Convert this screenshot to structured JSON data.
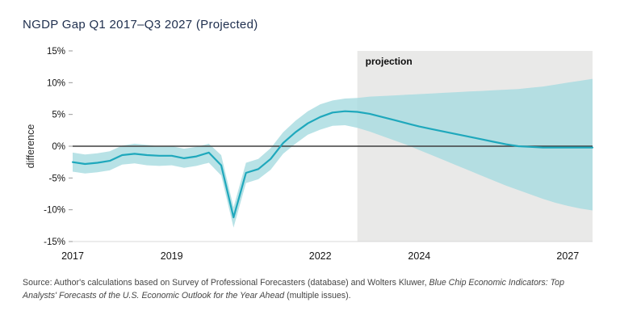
{
  "header": {
    "title": "NGDP Gap Q1 2017–Q3 2027 (Projected)"
  },
  "colors": {
    "line": "#1fa8bc",
    "band": "#a6dbe0",
    "projection_bg": "#e9e9e8",
    "zero_line": "#3f3f3f",
    "axis_line": "#d8d8d8",
    "tick_mark": "#9a9a9a"
  },
  "chart_data": {
    "type": "line",
    "title": "NGDP Gap Q1 2017–Q3 2027 (Projected)",
    "xlabel": "",
    "ylabel": "difference",
    "ylim": [
      -15,
      15
    ],
    "yticks": [
      15,
      10,
      5,
      0,
      -5,
      -10,
      -15
    ],
    "ytick_labels": [
      "15%",
      "10%",
      "5%",
      "0%",
      "-5%",
      "-10%",
      "-15%"
    ],
    "xticks": [
      2017,
      2019,
      2022,
      2024,
      2027
    ],
    "x_range": [
      2017.0,
      2027.5
    ],
    "projection_start": 2022.75,
    "projection_label": "projection",
    "grid": false,
    "legend": "none",
    "x": [
      2017.0,
      2017.25,
      2017.5,
      2017.75,
      2018.0,
      2018.25,
      2018.5,
      2018.75,
      2019.0,
      2019.25,
      2019.5,
      2019.75,
      2020.0,
      2020.25,
      2020.5,
      2020.75,
      2021.0,
      2021.25,
      2021.5,
      2021.75,
      2022.0,
      2022.25,
      2022.5,
      2022.75,
      2023.0,
      2023.25,
      2023.5,
      2023.75,
      2024.0,
      2024.25,
      2024.5,
      2024.75,
      2025.0,
      2025.25,
      2025.5,
      2025.75,
      2026.0,
      2026.25,
      2026.5,
      2026.75,
      2027.0,
      2027.25,
      2027.5
    ],
    "series": [
      {
        "name": "NGDP gap",
        "values": [
          -2.5,
          -2.8,
          -2.6,
          -2.3,
          -1.4,
          -1.2,
          -1.4,
          -1.5,
          -1.5,
          -1.9,
          -1.6,
          -1.0,
          -3.0,
          -11.2,
          -4.2,
          -3.6,
          -2.0,
          0.5,
          2.2,
          3.6,
          4.6,
          5.3,
          5.5,
          5.4,
          5.1,
          4.6,
          4.1,
          3.6,
          3.1,
          2.7,
          2.3,
          1.9,
          1.5,
          1.1,
          0.7,
          0.3,
          0.0,
          -0.1,
          -0.2,
          -0.2,
          -0.2,
          -0.2,
          -0.2
        ]
      },
      {
        "name": "band upper",
        "values": [
          -1.0,
          -1.3,
          -1.1,
          -0.8,
          0.1,
          0.4,
          0.2,
          0.0,
          0.0,
          -0.4,
          -0.1,
          0.4,
          -1.4,
          -9.6,
          -2.6,
          -2.0,
          -0.3,
          2.2,
          4.0,
          5.5,
          6.6,
          7.2,
          7.5,
          7.6,
          7.8,
          7.9,
          8.0,
          8.1,
          8.2,
          8.3,
          8.4,
          8.5,
          8.6,
          8.7,
          8.8,
          8.9,
          9.0,
          9.2,
          9.4,
          9.7,
          10.0,
          10.3,
          10.6
        ]
      },
      {
        "name": "band lower",
        "values": [
          -4.0,
          -4.3,
          -4.1,
          -3.8,
          -2.9,
          -2.7,
          -3.0,
          -3.1,
          -3.0,
          -3.4,
          -3.1,
          -2.6,
          -4.6,
          -12.8,
          -5.8,
          -5.2,
          -3.7,
          -1.2,
          0.4,
          1.8,
          2.6,
          3.2,
          3.3,
          2.9,
          2.3,
          1.6,
          0.9,
          0.2,
          -0.6,
          -1.4,
          -2.2,
          -3.0,
          -3.8,
          -4.6,
          -5.4,
          -6.2,
          -6.9,
          -7.6,
          -8.3,
          -8.9,
          -9.4,
          -9.8,
          -10.1
        ]
      }
    ]
  },
  "source": {
    "prefix": "Source: Author's calculations based on Survey of Professional Forecasters (database) and Wolters Kluwer, ",
    "italic": "Blue Chip Economic Indicators: Top Analysts' Forecasts of the U.S. Economic Outlook for the Year Ahead",
    "suffix": " (multiple issues)."
  }
}
